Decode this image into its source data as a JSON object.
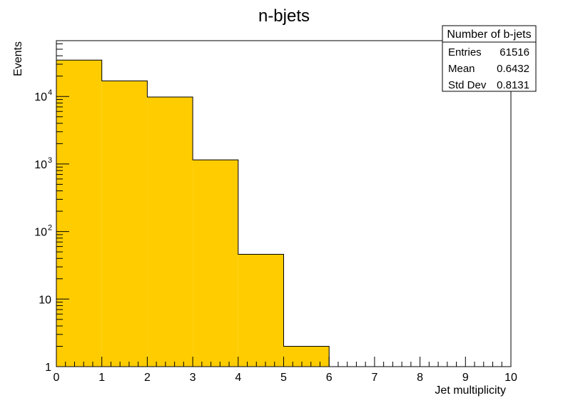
{
  "chart_data": {
    "type": "bar",
    "title": "n-bjets",
    "xlabel": "Jet multiplicity",
    "ylabel": "Events",
    "yscale": "log",
    "xlim": [
      0,
      10
    ],
    "ylim": [
      1,
      60000
    ],
    "bin_edges": [
      0,
      1,
      2,
      3,
      4,
      5,
      6,
      7,
      8,
      9,
      10
    ],
    "values": [
      34500,
      17000,
      9800,
      1150,
      46,
      2,
      0,
      0,
      0,
      0
    ],
    "x_tick_labels": [
      "0",
      "1",
      "2",
      "3",
      "4",
      "5",
      "6",
      "7",
      "8",
      "9",
      "10"
    ],
    "y_tick_labels": [
      {
        "value": 1,
        "base": "1",
        "exp": ""
      },
      {
        "value": 10,
        "base": "10",
        "exp": ""
      },
      {
        "value": 100,
        "base": "10",
        "exp": "2"
      },
      {
        "value": 1000,
        "base": "10",
        "exp": "3"
      },
      {
        "value": 10000,
        "base": "10",
        "exp": "4"
      }
    ],
    "grid": false,
    "fill_color": "#ffcc00",
    "line_color": "#000000"
  },
  "stats_box": {
    "title": "Number of b-jets",
    "rows": [
      {
        "label": "Entries",
        "value": "61516"
      },
      {
        "label": "Mean",
        "value": "0.6432"
      },
      {
        "label": "Std Dev",
        "value": "0.8131"
      }
    ]
  }
}
